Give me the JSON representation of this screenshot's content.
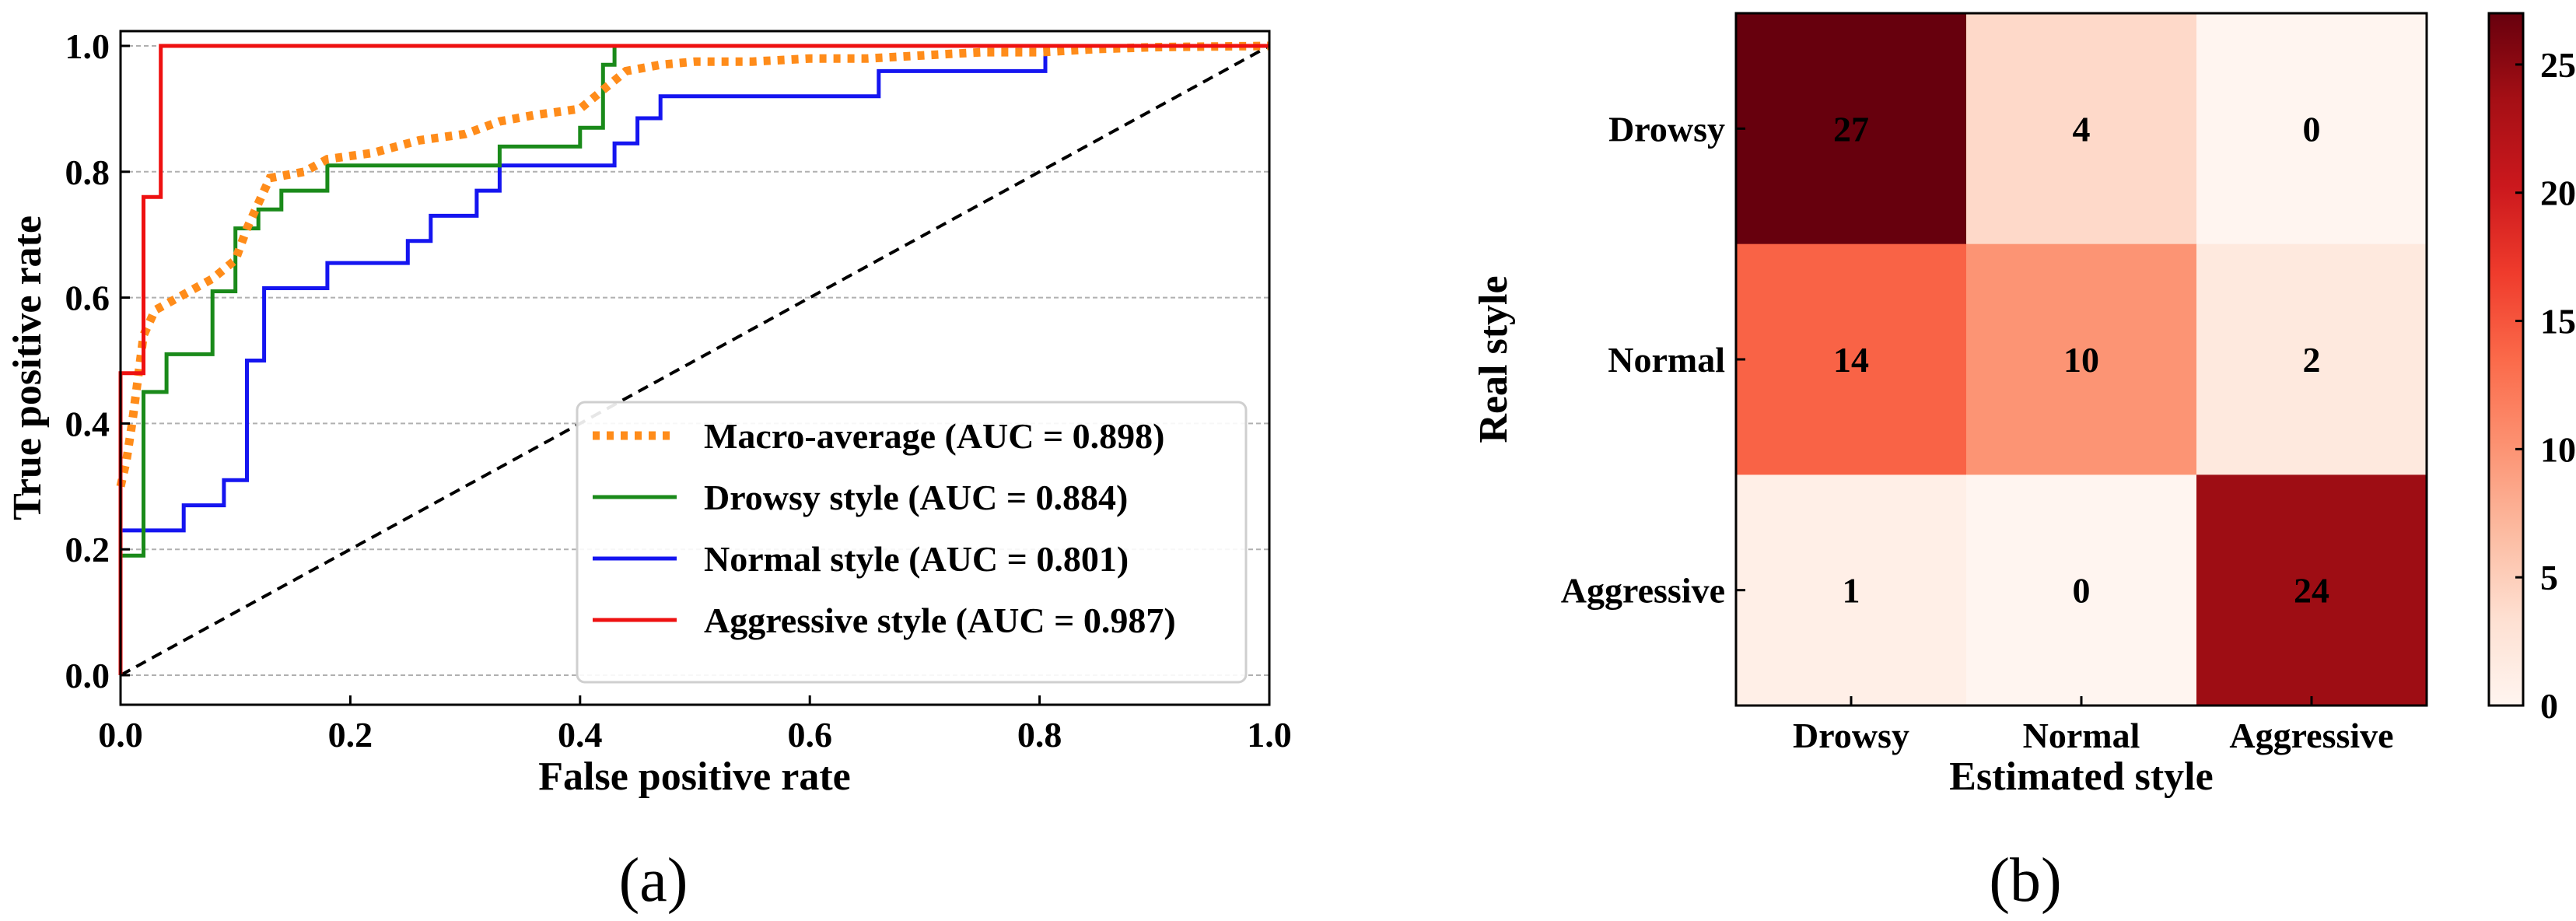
{
  "panels": [
    {
      "label": "(a)"
    },
    {
      "label": "(b)"
    }
  ],
  "chart_data": [
    {
      "type": "line",
      "title": "",
      "xlabel": "False positive rate",
      "ylabel": "True positive rate",
      "xlim": [
        0.0,
        1.0
      ],
      "ylim": [
        0.0,
        1.0
      ],
      "xticks": [
        "0.0",
        "0.2",
        "0.4",
        "0.6",
        "0.8",
        "1.0"
      ],
      "yticks": [
        "0.0",
        "0.2",
        "0.4",
        "0.6",
        "0.8",
        "1.0"
      ],
      "grid": "horizontal dashed",
      "legend_position": "lower-right",
      "series": [
        {
          "name": "Macro-average (AUC = 0.898)",
          "color": "#ff8c1a",
          "style": "dotted",
          "x": [
            0.0,
            0.005,
            0.01,
            0.015,
            0.02,
            0.03,
            0.05,
            0.07,
            0.08,
            0.1,
            0.11,
            0.12,
            0.13,
            0.16,
            0.18,
            0.22,
            0.26,
            0.3,
            0.33,
            0.36,
            0.4,
            0.42,
            0.44,
            0.47,
            0.5,
            0.55,
            0.6,
            0.65,
            0.7,
            0.75,
            0.8,
            0.85,
            0.9,
            1.0
          ],
          "y": [
            0.3,
            0.34,
            0.4,
            0.47,
            0.54,
            0.58,
            0.6,
            0.62,
            0.63,
            0.66,
            0.71,
            0.75,
            0.79,
            0.8,
            0.82,
            0.83,
            0.85,
            0.86,
            0.88,
            0.89,
            0.9,
            0.93,
            0.96,
            0.97,
            0.975,
            0.975,
            0.98,
            0.98,
            0.985,
            0.99,
            0.99,
            0.995,
            0.998,
            1.0
          ]
        },
        {
          "name": "Drowsy style (AUC = 0.884)",
          "color": "#1a8a1a",
          "style": "solid",
          "x": [
            0.0,
            0.0,
            0.02,
            0.02,
            0.04,
            0.04,
            0.08,
            0.08,
            0.1,
            0.1,
            0.12,
            0.12,
            0.14,
            0.14,
            0.18,
            0.18,
            0.33,
            0.33,
            0.4,
            0.4,
            0.42,
            0.42,
            0.43,
            0.43,
            1.0
          ],
          "y": [
            0.0,
            0.19,
            0.19,
            0.45,
            0.45,
            0.51,
            0.51,
            0.61,
            0.61,
            0.71,
            0.71,
            0.74,
            0.74,
            0.77,
            0.77,
            0.81,
            0.81,
            0.84,
            0.84,
            0.87,
            0.87,
            0.97,
            0.97,
            1.0,
            1.0
          ]
        },
        {
          "name": "Normal style (AUC = 0.801)",
          "color": "#1515f0",
          "style": "solid",
          "x": [
            0.0,
            0.0,
            0.055,
            0.055,
            0.09,
            0.09,
            0.11,
            0.11,
            0.125,
            0.125,
            0.18,
            0.18,
            0.25,
            0.25,
            0.27,
            0.27,
            0.31,
            0.31,
            0.33,
            0.33,
            0.43,
            0.43,
            0.45,
            0.45,
            0.47,
            0.47,
            0.66,
            0.66,
            0.805,
            0.805,
            1.0
          ],
          "y": [
            0.0,
            0.23,
            0.23,
            0.27,
            0.27,
            0.31,
            0.31,
            0.5,
            0.5,
            0.615,
            0.615,
            0.655,
            0.655,
            0.69,
            0.69,
            0.73,
            0.73,
            0.77,
            0.77,
            0.81,
            0.81,
            0.845,
            0.845,
            0.885,
            0.885,
            0.92,
            0.92,
            0.96,
            0.96,
            1.0,
            1.0
          ]
        },
        {
          "name": "Aggressive style (AUC = 0.987)",
          "color": "#ee1111",
          "style": "solid",
          "x": [
            0.0,
            0.0,
            0.02,
            0.02,
            0.035,
            0.035,
            1.0
          ],
          "y": [
            0.0,
            0.48,
            0.48,
            0.76,
            0.76,
            1.0,
            1.0
          ]
        },
        {
          "name": "",
          "color": "#000000",
          "style": "dashed",
          "x": [
            0.0,
            1.0
          ],
          "y": [
            0.0,
            1.0
          ]
        }
      ]
    },
    {
      "type": "heatmap",
      "title": "",
      "xlabel": "Estimated style",
      "ylabel": "Real style",
      "x_categories": [
        "Drowsy",
        "Normal",
        "Aggressive"
      ],
      "y_categories": [
        "Drowsy",
        "Normal",
        "Aggressive"
      ],
      "values": [
        [
          27,
          4,
          0
        ],
        [
          14,
          10,
          2
        ],
        [
          1,
          0,
          24
        ]
      ],
      "colormap": "Reds",
      "colorbar": {
        "range": [
          0,
          27
        ],
        "ticks": [
          0,
          5,
          10,
          15,
          20,
          25
        ],
        "tick_labels": [
          "0",
          "5",
          "10",
          "15",
          "20",
          "25"
        ]
      }
    }
  ]
}
